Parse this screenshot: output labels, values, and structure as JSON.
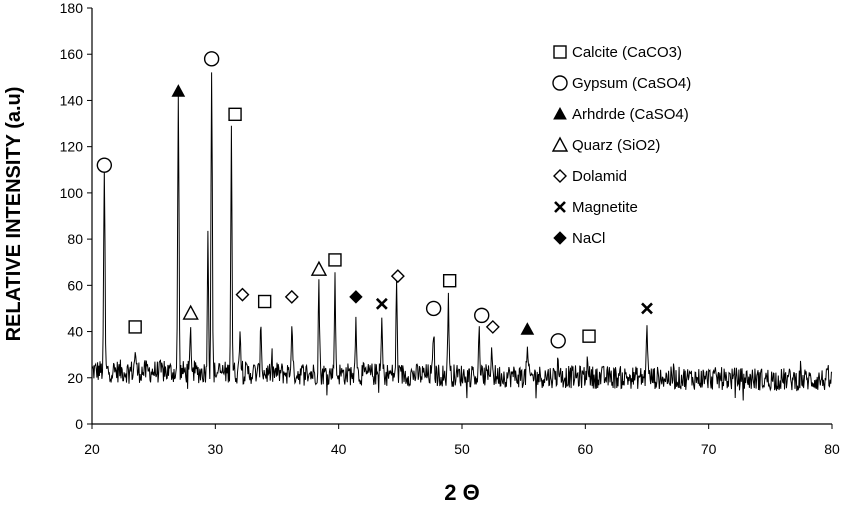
{
  "chart_data": {
    "type": "line",
    "title": "",
    "xlabel": "2 Θ",
    "ylabel": "RELATIVE INTENSITY (a.u)",
    "xlim": [
      20,
      80
    ],
    "ylim": [
      0,
      180
    ],
    "x_ticks": [
      "20",
      "30",
      "40",
      "50",
      "60",
      "70",
      "80"
    ],
    "y_ticks": [
      "0",
      "20",
      "40",
      "60",
      "80",
      "100",
      "120",
      "140",
      "160",
      "180"
    ],
    "grid": false,
    "legend_position": "top-right",
    "legend": [
      {
        "label": "Calcite (CaCO3)",
        "marker": "square-open"
      },
      {
        "label": "Gypsum (CaSO4)",
        "marker": "circle-open"
      },
      {
        "label": "Arhdrde (CaSO4)",
        "marker": "triangle-filled"
      },
      {
        "label": "Quarz (SiO2)",
        "marker": "triangle-open"
      },
      {
        "label": "Dolamid",
        "marker": "diamond-open"
      },
      {
        "label": "Magnetite",
        "marker": "x"
      },
      {
        "label": "NaCl",
        "marker": "diamond-filled"
      }
    ],
    "baseline": {
      "start_level": 23,
      "end_level": 19,
      "noise_amplitude": 5
    },
    "peaks": [
      {
        "x": 21.0,
        "y": 110
      },
      {
        "x": 23.5,
        "y": 32
      },
      {
        "x": 27.0,
        "y": 143
      },
      {
        "x": 28.0,
        "y": 40
      },
      {
        "x": 29.4,
        "y": 80
      },
      {
        "x": 29.7,
        "y": 156
      },
      {
        "x": 31.3,
        "y": 130
      },
      {
        "x": 32.0,
        "y": 45
      },
      {
        "x": 33.7,
        "y": 44
      },
      {
        "x": 36.2,
        "y": 45
      },
      {
        "x": 38.4,
        "y": 62
      },
      {
        "x": 39.7,
        "y": 62
      },
      {
        "x": 41.4,
        "y": 50
      },
      {
        "x": 43.5,
        "y": 45
      },
      {
        "x": 44.7,
        "y": 60
      },
      {
        "x": 47.7,
        "y": 42
      },
      {
        "x": 48.9,
        "y": 58
      },
      {
        "x": 51.4,
        "y": 40
      },
      {
        "x": 52.4,
        "y": 36
      },
      {
        "x": 55.3,
        "y": 33
      },
      {
        "x": 57.8,
        "y": 30
      },
      {
        "x": 60.2,
        "y": 32
      },
      {
        "x": 65.0,
        "y": 48
      }
    ],
    "markers": [
      {
        "phase": "Gypsum (CaSO4)",
        "marker": "circle-open",
        "x": 21.0,
        "y": 112
      },
      {
        "phase": "Calcite (CaCO3)",
        "marker": "square-open",
        "x": 23.5,
        "y": 42
      },
      {
        "phase": "Arhdrde (CaSO4)",
        "marker": "triangle-filled",
        "x": 27.0,
        "y": 144
      },
      {
        "phase": "Quarz (SiO2)",
        "marker": "triangle-open",
        "x": 28.0,
        "y": 48
      },
      {
        "phase": "Gypsum (CaSO4)",
        "marker": "circle-open",
        "x": 29.7,
        "y": 158
      },
      {
        "phase": "Calcite (CaCO3)",
        "marker": "square-open",
        "x": 31.6,
        "y": 134
      },
      {
        "phase": "Dolamid",
        "marker": "diamond-open",
        "x": 32.2,
        "y": 56
      },
      {
        "phase": "Calcite (CaCO3)",
        "marker": "square-open",
        "x": 34.0,
        "y": 53
      },
      {
        "phase": "Dolamid",
        "marker": "diamond-open",
        "x": 36.2,
        "y": 55
      },
      {
        "phase": "Quarz (SiO2)",
        "marker": "triangle-open",
        "x": 38.4,
        "y": 67
      },
      {
        "phase": "Calcite (CaCO3)",
        "marker": "square-open",
        "x": 39.7,
        "y": 71
      },
      {
        "phase": "NaCl",
        "marker": "diamond-filled",
        "x": 41.4,
        "y": 55
      },
      {
        "phase": "Magnetite",
        "marker": "x",
        "x": 43.5,
        "y": 52
      },
      {
        "phase": "Dolamid",
        "marker": "diamond-open",
        "x": 44.8,
        "y": 64
      },
      {
        "phase": "Gypsum (CaSO4)",
        "marker": "circle-open",
        "x": 47.7,
        "y": 50
      },
      {
        "phase": "Calcite (CaCO3)",
        "marker": "square-open",
        "x": 49.0,
        "y": 62
      },
      {
        "phase": "Gypsum (CaSO4)",
        "marker": "circle-open",
        "x": 51.6,
        "y": 47
      },
      {
        "phase": "Dolamid",
        "marker": "diamond-open",
        "x": 52.5,
        "y": 42
      },
      {
        "phase": "Arhdrde (CaSO4)",
        "marker": "triangle-filled",
        "x": 55.3,
        "y": 41
      },
      {
        "phase": "Gypsum (CaSO4)",
        "marker": "circle-open",
        "x": 57.8,
        "y": 36
      },
      {
        "phase": "Calcite (CaCO3)",
        "marker": "square-open",
        "x": 60.3,
        "y": 38
      },
      {
        "phase": "Magnetite",
        "marker": "x",
        "x": 65.0,
        "y": 50
      }
    ]
  }
}
